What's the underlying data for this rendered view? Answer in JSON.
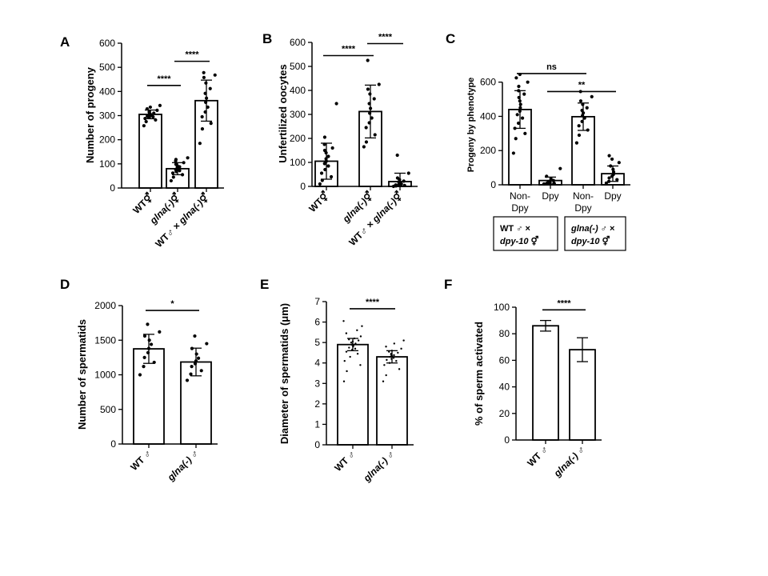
{
  "chart_data": [
    {
      "panel": "A",
      "type": "bar",
      "ylabel": "Number of progeny",
      "ylim": [
        0,
        600
      ],
      "yticks": [
        0,
        100,
        200,
        300,
        400,
        500,
        600
      ],
      "categories": [
        "WT⚥",
        "glna(-)⚥",
        "WT♂ × glna(-)⚥"
      ],
      "values": [
        305,
        80,
        362
      ],
      "errors": [
        18,
        25,
        85
      ],
      "points": [
        [
          258,
          275,
          282,
          288,
          292,
          295,
          298,
          300,
          302,
          304,
          306,
          308,
          310,
          314,
          318,
          322,
          328,
          335,
          342
        ],
        [
          30,
          45,
          55,
          62,
          68,
          72,
          76,
          80,
          84,
          88,
          92,
          98,
          105,
          112,
          118,
          125
        ],
        [
          185,
          245,
          268,
          295,
          315,
          335,
          355,
          372,
          392,
          412,
          435,
          458,
          468,
          478
        ]
      ],
      "significance": [
        {
          "from": 0,
          "to": 1,
          "label": "****",
          "y": 425
        },
        {
          "from": 1,
          "to": 2,
          "label": "****",
          "y": 525
        }
      ]
    },
    {
      "panel": "B",
      "type": "bar",
      "ylabel": "Unfertilized oocytes",
      "ylim": [
        0,
        600
      ],
      "yticks": [
        0,
        100,
        200,
        300,
        400,
        500,
        600
      ],
      "categories": [
        "WT⚥",
        "glna(-)⚥",
        "WT♂ × glna(-)⚥"
      ],
      "values": [
        105,
        312,
        20
      ],
      "errors": [
        75,
        110,
        35
      ],
      "points": [
        [
          10,
          25,
          40,
          55,
          70,
          85,
          95,
          105,
          115,
          125,
          140,
          150,
          160,
          175,
          205,
          345
        ],
        [
          165,
          185,
          215,
          245,
          265,
          285,
          305,
          325,
          345,
          365,
          385,
          405,
          425,
          525
        ],
        [
          0,
          2,
          4,
          6,
          8,
          10,
          12,
          15,
          18,
          22,
          28,
          35,
          55,
          130
        ]
      ],
      "significance": [
        {
          "from": 0,
          "to": 1,
          "label": "****",
          "y": 545
        },
        {
          "from": 1,
          "to": 2,
          "label": "****",
          "y": 595
        }
      ]
    },
    {
      "panel": "C",
      "type": "bar",
      "ylabel": "Progeny by phenotype",
      "ylim": [
        0,
        720
      ],
      "yticks": [
        0,
        200,
        400,
        600
      ],
      "categories": [
        "Non-Dpy",
        "Dpy",
        "Non-Dpy",
        "Dpy"
      ],
      "groups": [
        {
          "line1_pre": "WT ♂ ×",
          "line2": "dpy-10 ⚥"
        },
        {
          "line1": "glna(-) ♂ ×",
          "line2": "dpy-10 ⚥"
        }
      ],
      "values": [
        440,
        25,
        398,
        65
      ],
      "errors": [
        110,
        20,
        80,
        45
      ],
      "points": [
        [
          185,
          270,
          300,
          330,
          360,
          390,
          410,
          430,
          450,
          470,
          490,
          510,
          530,
          550,
          575,
          600,
          625,
          645
        ],
        [
          5,
          8,
          10,
          12,
          15,
          20,
          25,
          35,
          50,
          95
        ],
        [
          245,
          290,
          320,
          345,
          370,
          390,
          405,
          420,
          435,
          450,
          470,
          490,
          515,
          545
        ],
        [
          10,
          20,
          30,
          40,
          50,
          60,
          75,
          90,
          110,
          130,
          150,
          170
        ]
      ],
      "significance": [
        {
          "from": 0,
          "to": 2,
          "label": "ns",
          "y": 650
        },
        {
          "from": 1,
          "to": 3,
          "label": "**",
          "y": 545
        }
      ]
    },
    {
      "panel": "D",
      "type": "bar",
      "ylabel": "Number of spermatids",
      "ylim": [
        0,
        2000
      ],
      "yticks": [
        0,
        500,
        1000,
        1500,
        2000
      ],
      "categories": [
        "WT ♂",
        "glna(-) ♂"
      ],
      "values": [
        1375,
        1185
      ],
      "errors": [
        210,
        200
      ],
      "points": [
        [
          1000,
          1120,
          1180,
          1250,
          1320,
          1380,
          1440,
          1500,
          1560,
          1620,
          1730
        ],
        [
          920,
          1010,
          1060,
          1120,
          1160,
          1200,
          1240,
          1300,
          1380,
          1450,
          1560
        ]
      ],
      "significance": [
        {
          "from": 0,
          "to": 1,
          "label": "*",
          "y": 1930
        }
      ]
    },
    {
      "panel": "E",
      "type": "bar",
      "ylabel": "Diameter of spermatids (μm)",
      "ylim": [
        0,
        7
      ],
      "yticks": [
        0,
        1,
        2,
        3,
        4,
        5,
        6,
        7
      ],
      "categories": [
        "WT ♂",
        "glna(-) ♂"
      ],
      "values": [
        4.9,
        4.3
      ],
      "errors": [
        0.3,
        0.3
      ],
      "points": [
        [
          3.1,
          3.6,
          3.9,
          4.1,
          4.3,
          4.45,
          4.55,
          4.65,
          4.7,
          4.75,
          4.8,
          4.85,
          4.88,
          4.9,
          4.92,
          4.95,
          5.0,
          5.05,
          5.1,
          5.15,
          5.2,
          5.3,
          5.45,
          5.6,
          5.8,
          6.05
        ],
        [
          3.1,
          3.4,
          3.7,
          3.9,
          4.0,
          4.1,
          4.15,
          4.2,
          4.25,
          4.3,
          4.32,
          4.35,
          4.38,
          4.4,
          4.45,
          4.5,
          4.55,
          4.6,
          4.7,
          4.8,
          4.95,
          5.1
        ]
      ],
      "significance": [
        {
          "from": 0,
          "to": 1,
          "label": "****",
          "y": 6.65
        }
      ]
    },
    {
      "panel": "F",
      "type": "bar",
      "ylabel": "% of sperm activated",
      "ylim": [
        0,
        100
      ],
      "yticks": [
        0,
        20,
        40,
        60,
        80,
        100
      ],
      "categories": [
        "WT ♂",
        "glna(-) ♂"
      ],
      "values": [
        86,
        68
      ],
      "errors": [
        4,
        9
      ],
      "points": [
        [],
        []
      ],
      "significance": [
        {
          "from": 0,
          "to": 1,
          "label": "****",
          "y": 98
        }
      ]
    }
  ]
}
